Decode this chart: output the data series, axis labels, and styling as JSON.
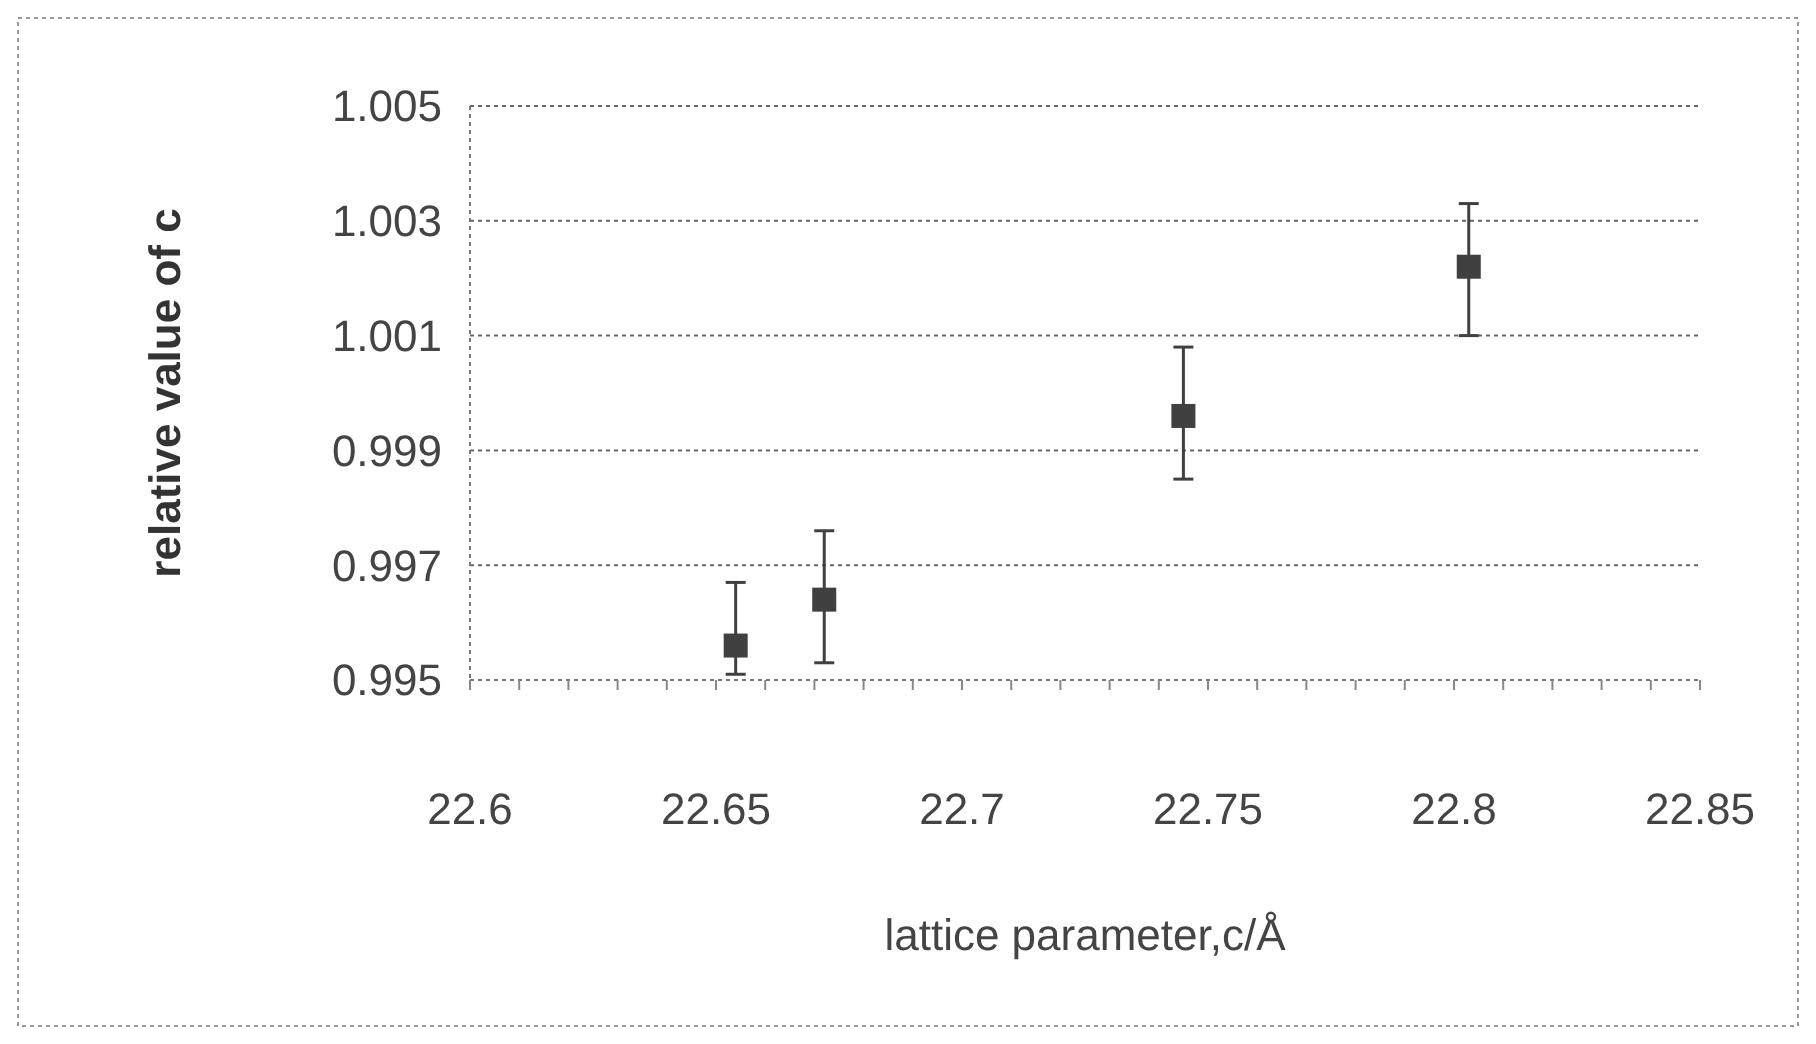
{
  "chart_data": {
    "type": "scatter",
    "xlabel": "lattice parameter,c/Å",
    "ylabel": "relative value of c",
    "x": [
      22.654,
      22.672,
      22.745,
      22.803
    ],
    "values": [
      0.9956,
      0.9964,
      0.9996,
      1.0022
    ],
    "errors": [
      [
        0.9951,
        0.9967
      ],
      [
        0.9953,
        0.9976
      ],
      [
        0.9985,
        1.0008
      ],
      [
        1.001,
        1.0033
      ]
    ],
    "color": "#404040",
    "marker": "square",
    "grid": "y",
    "xlim": [
      22.6,
      22.85
    ],
    "xticks": [
      22.6,
      22.65,
      22.7,
      22.75,
      22.8,
      22.85
    ],
    "ylim": [
      0.995,
      1.005
    ],
    "yticks": [
      {
        "value": 0.995,
        "label": "0.995"
      },
      {
        "value": 0.997,
        "label": "0.997"
      },
      {
        "value": 0.999,
        "label": "0.999"
      },
      {
        "value": 1.001,
        "label": "1.001"
      },
      {
        "value": 1.003,
        "label": "1.003"
      },
      {
        "value": 1.005,
        "label": "1.005"
      }
    ]
  }
}
